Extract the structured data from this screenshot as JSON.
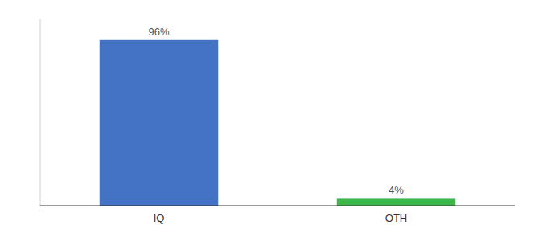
{
  "chart_data": {
    "type": "bar",
    "categories": [
      "IQ",
      "OTH"
    ],
    "values": [
      96,
      4
    ],
    "value_labels": [
      "96%",
      "4%"
    ],
    "colors": [
      "#4472c4",
      "#3cb84a"
    ],
    "ylim": [
      0,
      108
    ],
    "data_labels": true,
    "tick_labels": "x"
  }
}
